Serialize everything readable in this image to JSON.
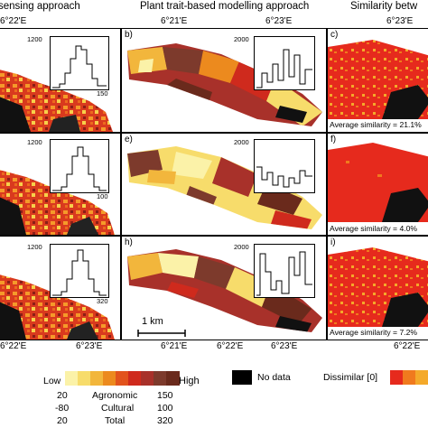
{
  "columns": {
    "left_title": "sensing approach",
    "middle_title": "Plant trait-based modelling approach",
    "right_title": "Similarity betw"
  },
  "top_coords": {
    "left": "6°22'E",
    "mid_a": "6°21'E",
    "mid_b": "6°23'E",
    "right": "6°23'E"
  },
  "bottom_coords": {
    "left_a": "6°22'E",
    "left_b": "6°23'E",
    "mid_a": "6°21'E",
    "mid_b": "6°22'E",
    "mid_c": "6°23'E",
    "right": "6°22'E"
  },
  "panels": {
    "a": {
      "ymax": "1200",
      "xmax": "150"
    },
    "b": {
      "label": "b)",
      "ymax": "2000"
    },
    "c": {
      "label": "c)",
      "similarity": "Average similarity = 21.1%"
    },
    "d": {
      "ymax": "1200",
      "xmax": "100"
    },
    "e": {
      "label": "e)",
      "ymax": "2000"
    },
    "f": {
      "label": "f)",
      "similarity": "Average similarity = 4.0%"
    },
    "g": {
      "ymax": "1200",
      "xmax": "320"
    },
    "h": {
      "label": "h)",
      "ymax": "2000"
    },
    "i": {
      "label": "i)",
      "similarity": "Average similarity = 7.2%"
    }
  },
  "scale_bar": "1 km",
  "legend": {
    "low": "Low",
    "high": "High",
    "no_data": "No data",
    "dissimilar": "Dissimilar [0]",
    "rows": [
      {
        "min": "20",
        "name": "Agronomic",
        "max": "150"
      },
      {
        "min": "-80",
        "name": "Cultural",
        "max": "100"
      },
      {
        "min": "20",
        "name": "Total",
        "max": "320"
      }
    ],
    "ramp_colors": [
      "#fbf2a8",
      "#f7dc6b",
      "#f2b63c",
      "#ec8a1e",
      "#e2531d",
      "#cf2a1d",
      "#a8312a",
      "#7d3a2c",
      "#6a2a1c"
    ],
    "right_colors": [
      "#e62a1d",
      "#f07a1e",
      "#f4a92a"
    ]
  },
  "colors": {
    "low": "#fbf2a8",
    "mid": "#ec8a1e",
    "high": "#6a2a1c",
    "dissimilar": "#e62a1d",
    "no_data": "#000000"
  }
}
